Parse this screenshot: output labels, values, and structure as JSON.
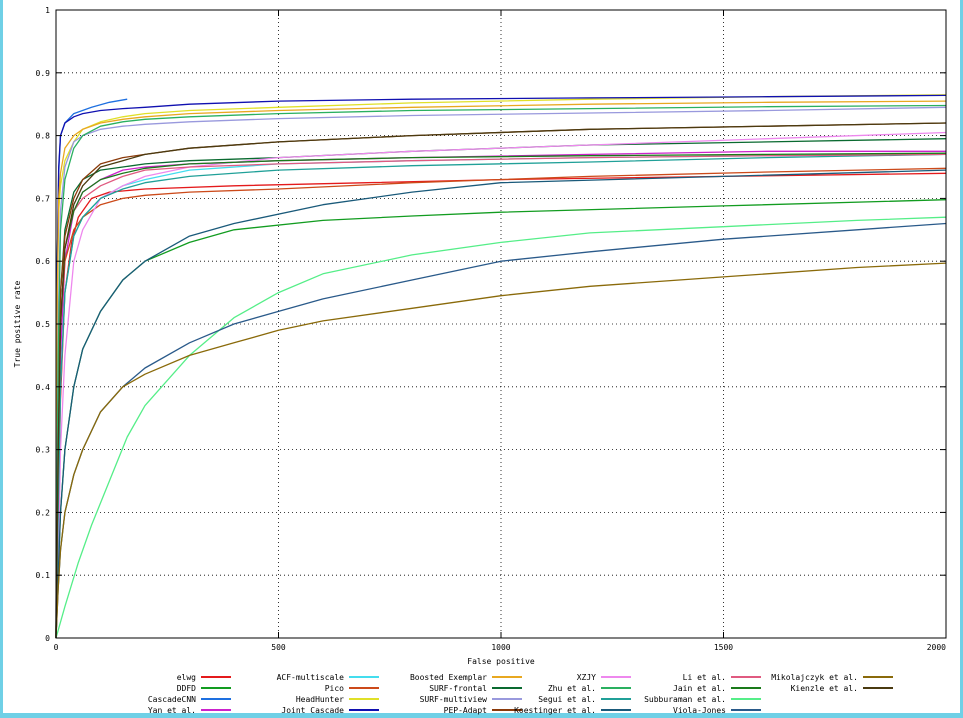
{
  "chart_data": {
    "type": "line",
    "xlabel": "False positive",
    "ylabel": "True positive rate",
    "xlim": [
      0,
      2000
    ],
    "ylim": [
      0,
      1
    ],
    "x_ticks": [
      0,
      500,
      1000,
      1500,
      2000
    ],
    "y_ticks": [
      0,
      0.1,
      0.2,
      0.3,
      0.4,
      0.5,
      0.6,
      0.7,
      0.8,
      0.9,
      1
    ],
    "x_tick_labels": [
      "0",
      "500",
      "1000",
      "1500",
      "2000"
    ],
    "y_tick_labels": [
      "0",
      "0.1",
      "0.2",
      "0.3",
      "0.4",
      "0.5",
      "0.6",
      "0.7",
      "0.8",
      "0.9",
      "1"
    ],
    "grid": true,
    "legend_position": "bottom",
    "series": [
      {
        "name": "elwg",
        "color": "#e41a1c",
        "x": [
          0,
          5,
          10,
          20,
          35,
          50,
          80,
          120,
          200,
          400,
          700,
          1000,
          1500,
          2000
        ],
        "y": [
          0.0,
          0.2,
          0.38,
          0.55,
          0.63,
          0.67,
          0.7,
          0.71,
          0.715,
          0.72,
          0.725,
          0.73,
          0.735,
          0.74
        ]
      },
      {
        "name": "DDFD",
        "color": "#129c20",
        "x": [
          0,
          5,
          10,
          20,
          40,
          60,
          100,
          150,
          200,
          300,
          400,
          600,
          800,
          1000,
          1500,
          2000
        ],
        "y": [
          0.0,
          0.1,
          0.2,
          0.3,
          0.4,
          0.46,
          0.52,
          0.57,
          0.6,
          0.63,
          0.65,
          0.665,
          0.672,
          0.678,
          0.688,
          0.698
        ]
      },
      {
        "name": "CascadeCNN",
        "color": "#1e70e0",
        "x": [
          0,
          3,
          6,
          10,
          20,
          40,
          80,
          120,
          160
        ],
        "y": [
          0.0,
          0.6,
          0.74,
          0.8,
          0.82,
          0.835,
          0.845,
          0.853,
          0.858
        ]
      },
      {
        "name": "Yan et al.",
        "color": "#cc22cc",
        "x": [
          0,
          5,
          10,
          20,
          40,
          60,
          100,
          150,
          200,
          300,
          500,
          800,
          1200,
          1600,
          2000
        ],
        "y": [
          0.0,
          0.25,
          0.45,
          0.6,
          0.68,
          0.71,
          0.73,
          0.745,
          0.75,
          0.755,
          0.76,
          0.765,
          0.77,
          0.775,
          0.775
        ]
      },
      {
        "name": "ACF-multiscale",
        "color": "#44ddee",
        "x": [
          0,
          5,
          10,
          20,
          40,
          60,
          100,
          150,
          200,
          300,
          500,
          800,
          1200,
          1600,
          2000
        ],
        "y": [
          0.0,
          0.2,
          0.4,
          0.55,
          0.64,
          0.67,
          0.7,
          0.72,
          0.73,
          0.745,
          0.755,
          0.76,
          0.765,
          0.768,
          0.77
        ]
      },
      {
        "name": "Pico",
        "color": "#cc4a1a",
        "x": [
          0,
          5,
          10,
          20,
          40,
          60,
          100,
          150,
          200,
          300,
          500,
          800,
          1200,
          1600,
          2000
        ],
        "y": [
          0.0,
          0.3,
          0.5,
          0.6,
          0.65,
          0.67,
          0.69,
          0.7,
          0.705,
          0.71,
          0.715,
          0.725,
          0.735,
          0.742,
          0.748
        ]
      },
      {
        "name": "HeadHunter",
        "color": "#e0e028",
        "x": [
          0,
          3,
          6,
          10,
          20,
          40,
          60,
          100,
          150,
          200,
          300,
          500,
          800,
          1200,
          1600,
          2000
        ],
        "y": [
          0.0,
          0.55,
          0.68,
          0.72,
          0.76,
          0.79,
          0.81,
          0.822,
          0.83,
          0.835,
          0.84,
          0.845,
          0.852,
          0.858,
          0.862,
          0.865
        ]
      },
      {
        "name": "Joint Cascade",
        "color": "#1010b0",
        "x": [
          0,
          3,
          6,
          10,
          20,
          40,
          60,
          100,
          150,
          200,
          300,
          500,
          800,
          1200,
          1600,
          2000
        ],
        "y": [
          0.0,
          0.6,
          0.75,
          0.8,
          0.82,
          0.83,
          0.835,
          0.84,
          0.843,
          0.845,
          0.85,
          0.855,
          0.858,
          0.86,
          0.862,
          0.864
        ]
      },
      {
        "name": "Boosted Exemplar",
        "color": "#e8a820",
        "x": [
          0,
          3,
          6,
          10,
          20,
          40,
          60,
          100,
          150,
          200,
          300,
          500,
          800,
          1200,
          1600,
          2000
        ],
        "y": [
          0.0,
          0.55,
          0.7,
          0.74,
          0.78,
          0.8,
          0.81,
          0.82,
          0.826,
          0.83,
          0.835,
          0.84,
          0.845,
          0.85,
          0.853,
          0.855
        ]
      },
      {
        "name": "SURF-frontal",
        "color": "#0a6a30",
        "x": [
          0,
          5,
          10,
          20,
          40,
          60,
          100,
          150,
          200,
          300,
          500,
          800,
          1200,
          1600,
          2000
        ],
        "y": [
          0.0,
          0.4,
          0.55,
          0.65,
          0.71,
          0.73,
          0.745,
          0.75,
          0.755,
          0.76,
          0.765,
          0.775,
          0.785,
          0.79,
          0.795
        ]
      },
      {
        "name": "SURF-multiview",
        "color": "#9999dd",
        "x": [
          0,
          5,
          10,
          20,
          40,
          60,
          100,
          150,
          200,
          300,
          500,
          800,
          1200,
          1600,
          2000
        ],
        "y": [
          0.0,
          0.5,
          0.68,
          0.75,
          0.79,
          0.8,
          0.81,
          0.815,
          0.818,
          0.822,
          0.827,
          0.832,
          0.836,
          0.84,
          0.845
        ]
      },
      {
        "name": "PEP-Adapt",
        "color": "#8a3a0a",
        "x": [
          0,
          5,
          10,
          20,
          40,
          60,
          100,
          150,
          200,
          300,
          500,
          800,
          1200,
          1600,
          2000
        ],
        "y": [
          0.0,
          0.4,
          0.55,
          0.64,
          0.7,
          0.73,
          0.755,
          0.765,
          0.77,
          0.78,
          0.79,
          0.8,
          0.81,
          0.815,
          0.82
        ]
      },
      {
        "name": "XZJY",
        "color": "#ee88ee",
        "x": [
          0,
          5,
          10,
          20,
          40,
          60,
          100,
          150,
          200,
          300,
          500,
          800,
          1200,
          1600,
          2000
        ],
        "y": [
          0.0,
          0.1,
          0.3,
          0.45,
          0.6,
          0.65,
          0.7,
          0.72,
          0.735,
          0.75,
          0.765,
          0.775,
          0.785,
          0.795,
          0.805
        ]
      },
      {
        "name": "Zhu et al.",
        "color": "#2ab060",
        "x": [
          0,
          5,
          10,
          20,
          40,
          60,
          100,
          150,
          200,
          300,
          500,
          800,
          1200,
          1600,
          2000
        ],
        "y": [
          0.0,
          0.45,
          0.65,
          0.73,
          0.78,
          0.8,
          0.815,
          0.822,
          0.826,
          0.83,
          0.835,
          0.84,
          0.843,
          0.846,
          0.848
        ]
      },
      {
        "name": "Segui et al.",
        "color": "#20a098",
        "x": [
          0,
          5,
          10,
          20,
          40,
          60,
          100,
          150,
          200,
          300,
          500,
          800,
          1200,
          1600,
          2000
        ],
        "y": [
          0.0,
          0.2,
          0.4,
          0.55,
          0.64,
          0.67,
          0.7,
          0.715,
          0.725,
          0.735,
          0.745,
          0.752,
          0.758,
          0.765,
          0.77
        ]
      },
      {
        "name": "Koestinger et al.",
        "color": "#1a5a7a",
        "x": [
          0,
          5,
          10,
          20,
          40,
          60,
          100,
          150,
          200,
          300,
          400,
          600,
          800,
          1000,
          1500,
          2000
        ],
        "y": [
          0.0,
          0.1,
          0.2,
          0.3,
          0.4,
          0.46,
          0.52,
          0.57,
          0.6,
          0.64,
          0.66,
          0.69,
          0.71,
          0.725,
          0.735,
          0.745
        ]
      },
      {
        "name": "Li et al.",
        "color": "#e05a80",
        "x": [
          0,
          5,
          10,
          20,
          40,
          60,
          100,
          150,
          200,
          300,
          500,
          800,
          1200,
          1600,
          2000
        ],
        "y": [
          0.0,
          0.3,
          0.5,
          0.62,
          0.68,
          0.7,
          0.72,
          0.735,
          0.745,
          0.75,
          0.755,
          0.76,
          0.765,
          0.768,
          0.77
        ]
      },
      {
        "name": "Jain et al.",
        "color": "#1a7a1a",
        "x": [
          0,
          5,
          10,
          20,
          40,
          60,
          100,
          150,
          200,
          300,
          500,
          800,
          1200,
          1600,
          2000
        ],
        "y": [
          0.0,
          0.3,
          0.5,
          0.62,
          0.68,
          0.71,
          0.73,
          0.74,
          0.748,
          0.755,
          0.76,
          0.765,
          0.768,
          0.77,
          0.772
        ]
      },
      {
        "name": "Subburaman et al.",
        "color": "#55ee88",
        "x": [
          0,
          20,
          50,
          80,
          120,
          160,
          200,
          300,
          400,
          500,
          600,
          800,
          1000,
          1200,
          1500,
          1800,
          2000
        ],
        "y": [
          0.0,
          0.05,
          0.12,
          0.18,
          0.25,
          0.32,
          0.37,
          0.45,
          0.51,
          0.55,
          0.58,
          0.61,
          0.63,
          0.645,
          0.655,
          0.665,
          0.67
        ]
      },
      {
        "name": "Viola-Jones",
        "color": "#2a5a8a",
        "x": [
          0,
          5,
          10,
          20,
          40,
          60,
          100,
          150,
          200,
          300,
          400,
          500,
          600,
          800,
          1000,
          1200,
          1500,
          1800,
          2000
        ],
        "y": [
          0.0,
          0.08,
          0.14,
          0.2,
          0.26,
          0.3,
          0.36,
          0.4,
          0.43,
          0.47,
          0.5,
          0.52,
          0.54,
          0.57,
          0.6,
          0.615,
          0.635,
          0.65,
          0.66
        ]
      },
      {
        "name": "Mikolajczyk et al.",
        "color": "#8a6a0a",
        "x": [
          0,
          5,
          10,
          20,
          40,
          60,
          100,
          150,
          200,
          300,
          400,
          500,
          600,
          800,
          1000,
          1200,
          1500,
          1800,
          2000
        ],
        "y": [
          0.0,
          0.08,
          0.14,
          0.2,
          0.26,
          0.3,
          0.36,
          0.4,
          0.42,
          0.45,
          0.47,
          0.49,
          0.505,
          0.525,
          0.545,
          0.56,
          0.575,
          0.59,
          0.597
        ]
      },
      {
        "name": "Kienzle et al.",
        "color": "#4a3a10",
        "x": [
          0,
          5,
          10,
          20,
          40,
          60,
          100,
          150,
          200,
          300,
          500,
          800,
          1200,
          1600,
          2000
        ],
        "y": [
          0.0,
          0.3,
          0.5,
          0.62,
          0.69,
          0.72,
          0.75,
          0.76,
          0.77,
          0.78,
          0.79,
          0.8,
          0.81,
          0.815,
          0.82
        ]
      }
    ]
  }
}
